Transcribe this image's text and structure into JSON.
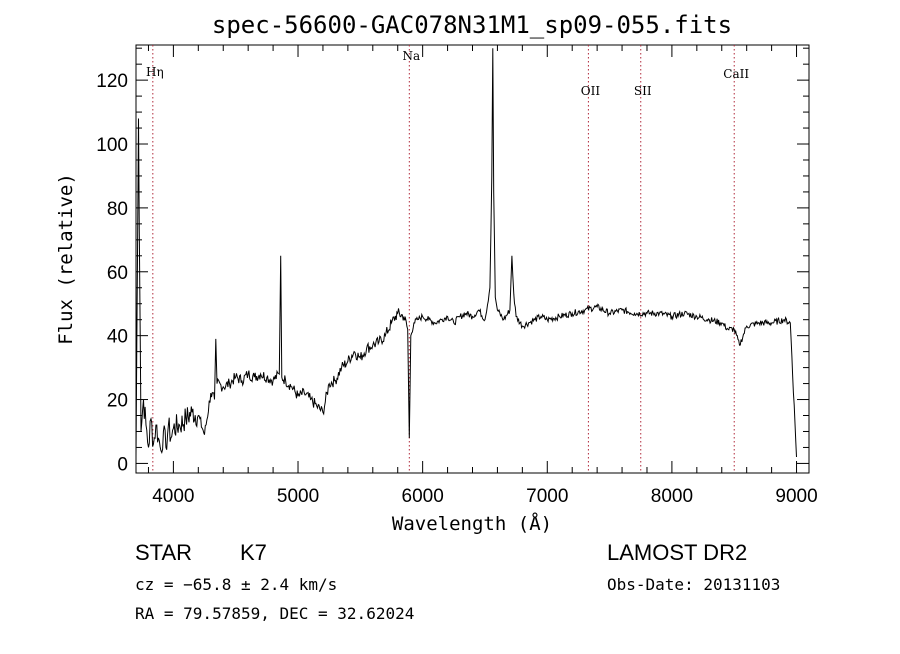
{
  "chart_data": {
    "type": "line",
    "title": "spec-56600-GAC078N31M1_sp09-055.fits",
    "xlabel": "Wavelength (Å)",
    "ylabel": "Flux (relative)",
    "xlim": [
      3700,
      9100
    ],
    "ylim": [
      -3,
      131
    ],
    "xticks": [
      4000,
      5000,
      6000,
      7000,
      8000,
      9000
    ],
    "yticks": [
      0,
      20,
      40,
      60,
      80,
      100,
      120
    ],
    "grid": false,
    "series": [
      {
        "x": [
          3700,
          3720,
          3740,
          3760,
          3780,
          3800,
          3820,
          3840,
          3860,
          3880,
          3900,
          3920,
          3940,
          3960,
          3980,
          4000,
          4050,
          4100,
          4150,
          4200,
          4250,
          4300,
          4330,
          4340,
          4350,
          4400,
          4450,
          4500,
          4550,
          4600,
          4650,
          4700,
          4750,
          4800,
          4850,
          4861,
          4870,
          4900,
          4950,
          5000,
          5050,
          5100,
          5150,
          5200,
          5250,
          5300,
          5350,
          5400,
          5450,
          5500,
          5550,
          5600,
          5650,
          5700,
          5750,
          5800,
          5850,
          5880,
          5893,
          5905,
          5930,
          5960,
          6000,
          6050,
          6100,
          6150,
          6200,
          6250,
          6300,
          6350,
          6400,
          6450,
          6500,
          6540,
          6555,
          6563,
          6570,
          6583,
          6600,
          6650,
          6700,
          6716,
          6731,
          6750,
          6800,
          6850,
          6900,
          6950,
          7000,
          7100,
          7200,
          7300,
          7400,
          7500,
          7600,
          7700,
          7800,
          7900,
          8000,
          8100,
          8200,
          8300,
          8400,
          8450,
          8500,
          8542,
          8600,
          8700,
          8800,
          8900,
          8950,
          9000
        ],
        "y": [
          2,
          108,
          10,
          20,
          12,
          5,
          14,
          6,
          12,
          8,
          4,
          10,
          5,
          12,
          8,
          11,
          12,
          14,
          16,
          15,
          9,
          22,
          20,
          39,
          25,
          24,
          25,
          27,
          26,
          28,
          27,
          28,
          27,
          26,
          28,
          65,
          27,
          26,
          24,
          21,
          22,
          20,
          18,
          16,
          25,
          26,
          30,
          32,
          35,
          33,
          36,
          37,
          38,
          40,
          44,
          47,
          46,
          42,
          8,
          40,
          44,
          45,
          46,
          45,
          44,
          45,
          46,
          44,
          46,
          47,
          46,
          48,
          45,
          55,
          90,
          130,
          85,
          52,
          48,
          45,
          48,
          65,
          53,
          46,
          43,
          44,
          45,
          46,
          45,
          46,
          47,
          48,
          49,
          47,
          48,
          47,
          47,
          47,
          46,
          47,
          46,
          45,
          44,
          42,
          42,
          37,
          43,
          44,
          44,
          45,
          44,
          2
        ]
      }
    ],
    "line_markers": [
      {
        "label": "Hη",
        "x": 3835
      },
      {
        "label": "Na",
        "x": 5893
      },
      {
        "label": "OII",
        "x": 7330
      },
      {
        "label": "SII",
        "x": 7750
      },
      {
        "label": "CaII",
        "x": 8500
      }
    ]
  },
  "info": {
    "object_class": "STAR",
    "subclass": "K7",
    "cz": "cz = −65.8 ± 2.4 km/s",
    "coords": "RA =  79.57859, DEC =  32.62024",
    "survey": "LAMOST DR2",
    "obs_date": "Obs-Date: 20131103"
  }
}
